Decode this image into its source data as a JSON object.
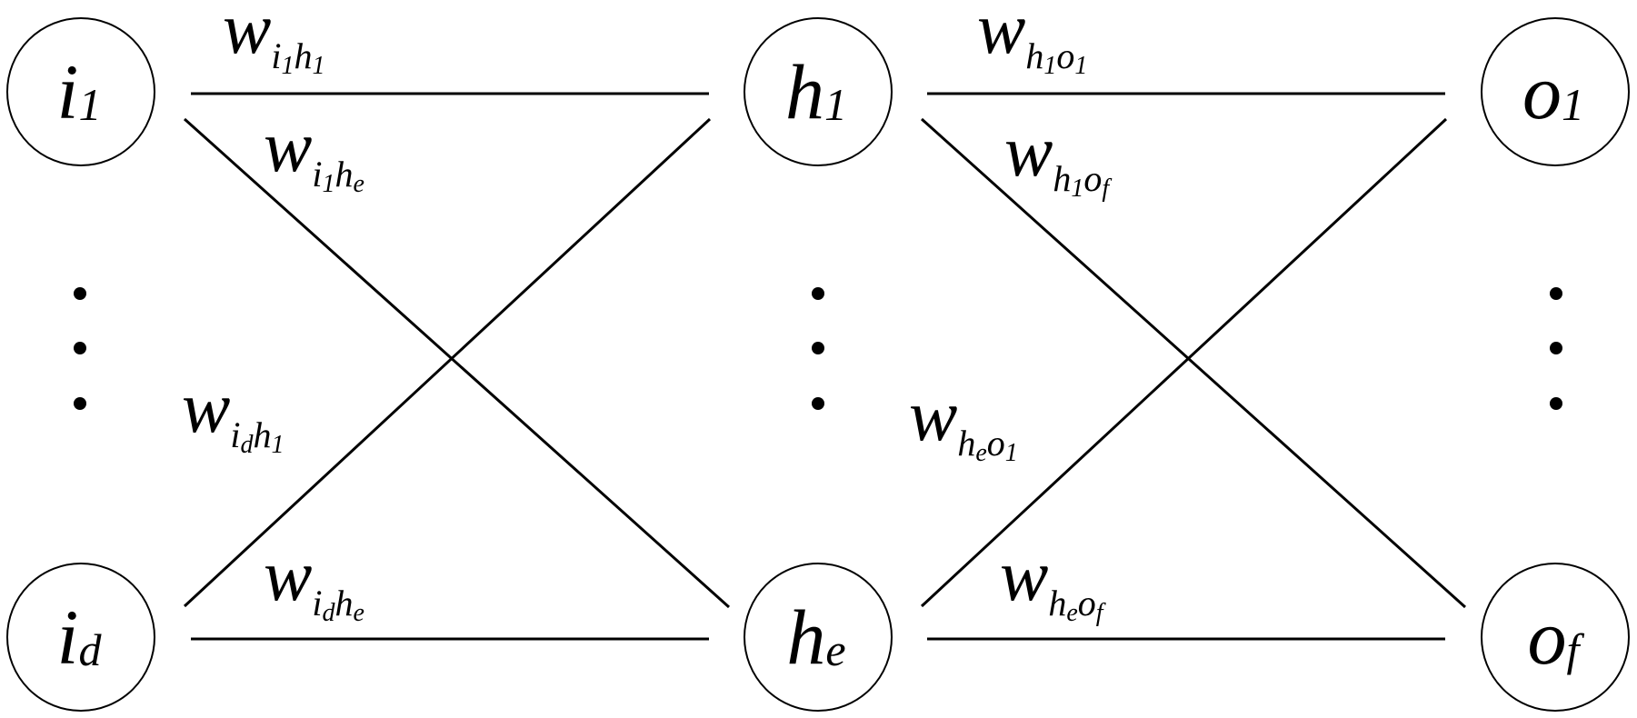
{
  "nodes": {
    "i1": {
      "main": "i",
      "sub": "1"
    },
    "id": {
      "main": "i",
      "sub": "d"
    },
    "h1": {
      "main": "h",
      "sub": "1"
    },
    "he": {
      "main": "h",
      "sub": "e"
    },
    "o1": {
      "main": "o",
      "sub": "1"
    },
    "of": {
      "main": "o",
      "sub": "f"
    }
  },
  "weights": {
    "w_i1h1": {
      "w": "w",
      "a": "i",
      "as": "1",
      "b": "h",
      "bs": "1"
    },
    "w_i1he": {
      "w": "w",
      "a": "i",
      "as": "1",
      "b": "h",
      "bs": "e"
    },
    "w_idh1": {
      "w": "w",
      "a": "i",
      "as": "d",
      "b": "h",
      "bs": "1"
    },
    "w_idhe": {
      "w": "w",
      "a": "i",
      "as": "d",
      "b": "h",
      "bs": "e"
    },
    "w_h1o1": {
      "w": "w",
      "a": "h",
      "as": "1",
      "b": "o",
      "bs": "1"
    },
    "w_h1of": {
      "w": "w",
      "a": "h",
      "as": "1",
      "b": "o",
      "bs": "f"
    },
    "w_heo1": {
      "w": "w",
      "a": "h",
      "as": "e",
      "b": "o",
      "bs": "1"
    },
    "w_heof": {
      "w": "w",
      "a": "h",
      "as": "e",
      "b": "o",
      "bs": "f"
    }
  },
  "colors": {
    "stroke": "#000000",
    "background": "#ffffff"
  }
}
